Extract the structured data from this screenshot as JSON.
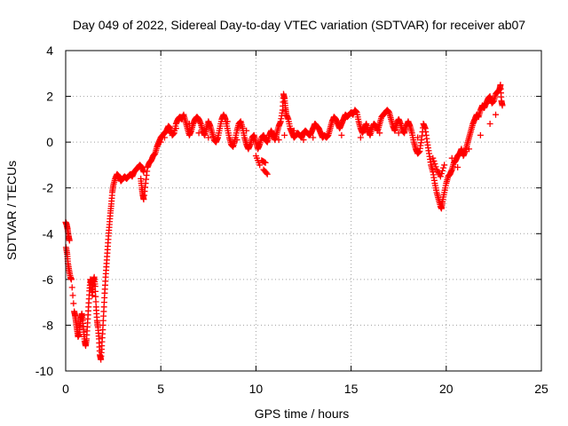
{
  "chart_data": {
    "type": "scatter",
    "title": "Day 049 of 2022, Sidereal Day-to-day VTEC variation (SDTVAR) for receiver ab07",
    "xlabel": "GPS time / hours",
    "ylabel": "SDTVAR / TECUs",
    "xlim": [
      0,
      25
    ],
    "ylim": [
      -10,
      4
    ],
    "xticks": [
      0,
      5,
      10,
      15,
      20,
      25
    ],
    "yticks": [
      -10,
      -8,
      -6,
      -4,
      -2,
      0,
      2,
      4
    ],
    "xtick_labels": [
      "0",
      "5",
      "10",
      "15",
      "20",
      "25"
    ],
    "ytick_labels": [
      "-10",
      "-8",
      "-6",
      "-4",
      "-2",
      "0",
      "2",
      "4"
    ],
    "grid": true,
    "marker": "+",
    "series": [
      {
        "name": "SDTVAR",
        "color": "#ff0000",
        "points": [
          [
            0.0,
            -3.5
          ],
          [
            0.05,
            -3.6
          ],
          [
            0.1,
            -3.8
          ],
          [
            0.15,
            -4.1
          ],
          [
            0.2,
            -4.3
          ],
          [
            0.02,
            -4.6
          ],
          [
            0.08,
            -4.9
          ],
          [
            0.12,
            -5.3
          ],
          [
            0.18,
            -5.6
          ],
          [
            0.25,
            -5.9
          ],
          [
            0.3,
            -6.0
          ],
          [
            0.45,
            -7.4
          ],
          [
            0.5,
            -7.6
          ],
          [
            0.55,
            -7.9
          ],
          [
            0.6,
            -8.2
          ],
          [
            0.65,
            -8.5
          ],
          [
            0.7,
            -8.4
          ],
          [
            0.75,
            -8.0
          ],
          [
            0.8,
            -7.7
          ],
          [
            0.85,
            -7.5
          ],
          [
            0.9,
            -7.8
          ],
          [
            0.95,
            -8.3
          ],
          [
            1.0,
            -8.7
          ],
          [
            1.05,
            -8.9
          ],
          [
            1.1,
            -8.6
          ],
          [
            1.15,
            -7.9
          ],
          [
            1.2,
            -7.2
          ],
          [
            1.25,
            -6.5
          ],
          [
            1.3,
            -6.0
          ],
          [
            1.35,
            -6.2
          ],
          [
            1.4,
            -6.7
          ],
          [
            1.45,
            -6.1
          ],
          [
            1.5,
            -5.9
          ],
          [
            1.55,
            -6.3
          ],
          [
            1.6,
            -7.2
          ],
          [
            1.65,
            -7.8
          ],
          [
            1.7,
            -8.1
          ],
          [
            1.75,
            -8.6
          ],
          [
            1.8,
            -9.3
          ],
          [
            1.85,
            -9.5
          ],
          [
            1.9,
            -8.9
          ],
          [
            1.95,
            -8.2
          ],
          [
            2.0,
            -7.4
          ],
          [
            2.05,
            -6.6
          ],
          [
            2.1,
            -5.9
          ],
          [
            2.15,
            -5.3
          ],
          [
            2.2,
            -4.7
          ],
          [
            2.25,
            -4.1
          ],
          [
            2.3,
            -3.6
          ],
          [
            2.35,
            -3.1
          ],
          [
            2.4,
            -2.7
          ],
          [
            2.45,
            -2.2
          ],
          [
            2.5,
            -1.9
          ],
          [
            2.6,
            -1.6
          ],
          [
            2.7,
            -1.4
          ],
          [
            2.8,
            -1.5
          ],
          [
            2.9,
            -1.7
          ],
          [
            3.0,
            -1.6
          ],
          [
            3.1,
            -1.5
          ],
          [
            3.2,
            -1.6
          ],
          [
            3.3,
            -1.5
          ],
          [
            3.4,
            -1.4
          ],
          [
            3.5,
            -1.5
          ],
          [
            3.6,
            -1.3
          ],
          [
            3.7,
            -1.2
          ],
          [
            3.8,
            -1.1
          ],
          [
            3.9,
            -1.0
          ],
          [
            4.0,
            -1.1
          ],
          [
            4.1,
            -1.3
          ],
          [
            3.95,
            -1.6
          ],
          [
            4.0,
            -2.0
          ],
          [
            4.05,
            -2.3
          ],
          [
            4.1,
            -2.5
          ],
          [
            4.2,
            -1.8
          ],
          [
            4.3,
            -1.1
          ],
          [
            4.4,
            -0.9
          ],
          [
            4.5,
            -0.8
          ],
          [
            4.6,
            -0.6
          ],
          [
            4.7,
            -0.5
          ],
          [
            4.8,
            -0.2
          ],
          [
            4.9,
            0.0
          ],
          [
            5.0,
            0.2
          ],
          [
            5.1,
            0.3
          ],
          [
            5.2,
            0.4
          ],
          [
            5.3,
            0.5
          ],
          [
            5.4,
            0.7
          ],
          [
            5.5,
            0.6
          ],
          [
            5.6,
            0.3
          ],
          [
            5.7,
            0.4
          ],
          [
            5.8,
            0.8
          ],
          [
            5.9,
            1.0
          ],
          [
            6.0,
            1.1
          ],
          [
            6.1,
            1.0
          ],
          [
            6.2,
            1.2
          ],
          [
            6.3,
            0.9
          ],
          [
            6.4,
            0.6
          ],
          [
            6.5,
            0.3
          ],
          [
            6.6,
            0.5
          ],
          [
            6.7,
            0.8
          ],
          [
            6.8,
            1.0
          ],
          [
            6.9,
            1.1
          ],
          [
            7.0,
            1.0
          ],
          [
            7.1,
            0.8
          ],
          [
            7.2,
            0.5
          ],
          [
            7.3,
            0.3
          ],
          [
            7.4,
            0.6
          ],
          [
            7.5,
            0.9
          ],
          [
            7.6,
            0.7
          ],
          [
            7.7,
            0.4
          ],
          [
            7.8,
            0.1
          ],
          [
            7.9,
            0.0
          ],
          [
            8.0,
            0.2
          ],
          [
            8.1,
            0.6
          ],
          [
            8.2,
            1.0
          ],
          [
            8.3,
            1.2
          ],
          [
            8.4,
            1.0
          ],
          [
            8.5,
            0.6
          ],
          [
            8.6,
            0.2
          ],
          [
            8.7,
            -0.1
          ],
          [
            8.8,
            -0.2
          ],
          [
            8.9,
            0.1
          ],
          [
            9.0,
            0.5
          ],
          [
            9.1,
            0.8
          ],
          [
            9.2,
            0.9
          ],
          [
            9.3,
            0.6
          ],
          [
            9.4,
            0.2
          ],
          [
            9.5,
            -0.1
          ],
          [
            9.6,
            -0.3
          ],
          [
            9.7,
            -0.1
          ],
          [
            9.8,
            0.2
          ],
          [
            9.9,
            0.3
          ],
          [
            10.0,
            0.0
          ],
          [
            10.1,
            -0.3
          ],
          [
            10.2,
            -0.1
          ],
          [
            10.3,
            0.2
          ],
          [
            10.4,
            0.3
          ],
          [
            10.5,
            0.1
          ],
          [
            10.6,
            0.0
          ],
          [
            10.7,
            0.3
          ],
          [
            10.8,
            0.5
          ],
          [
            10.9,
            0.3
          ],
          [
            11.0,
            0.1
          ],
          [
            11.1,
            0.4
          ],
          [
            11.2,
            0.7
          ],
          [
            11.3,
            0.9
          ],
          [
            11.4,
            1.4
          ],
          [
            11.45,
            2.1
          ],
          [
            11.5,
            1.9
          ],
          [
            11.55,
            1.5
          ],
          [
            11.6,
            1.2
          ],
          [
            11.7,
            1.0
          ],
          [
            11.8,
            0.6
          ],
          [
            11.9,
            0.4
          ],
          [
            12.0,
            0.2
          ],
          [
            12.1,
            0.3
          ],
          [
            12.2,
            0.4
          ],
          [
            12.3,
            0.3
          ],
          [
            12.4,
            0.2
          ],
          [
            12.5,
            0.4
          ],
          [
            12.6,
            0.5
          ],
          [
            12.7,
            0.4
          ],
          [
            12.8,
            0.3
          ],
          [
            12.9,
            0.4
          ],
          [
            13.0,
            0.6
          ],
          [
            13.1,
            0.8
          ],
          [
            13.2,
            0.7
          ],
          [
            13.3,
            0.6
          ],
          [
            13.4,
            0.4
          ],
          [
            13.5,
            0.2
          ],
          [
            13.6,
            0.3
          ],
          [
            13.7,
            0.2
          ],
          [
            13.8,
            0.3
          ],
          [
            13.9,
            0.6
          ],
          [
            14.0,
            0.9
          ],
          [
            14.1,
            1.1
          ],
          [
            14.2,
            1.0
          ],
          [
            14.3,
            0.8
          ],
          [
            14.4,
            0.6
          ],
          [
            14.5,
            0.8
          ],
          [
            14.6,
            1.0
          ],
          [
            14.7,
            1.2
          ],
          [
            14.8,
            1.1
          ],
          [
            14.9,
            1.2
          ],
          [
            15.0,
            1.3
          ],
          [
            15.1,
            1.2
          ],
          [
            15.2,
            1.4
          ],
          [
            15.3,
            1.3
          ],
          [
            15.4,
            0.9
          ],
          [
            15.5,
            0.6
          ],
          [
            15.6,
            0.4
          ],
          [
            15.7,
            0.6
          ],
          [
            15.8,
            0.8
          ],
          [
            15.9,
            0.5
          ],
          [
            16.0,
            0.3
          ],
          [
            16.1,
            0.6
          ],
          [
            16.2,
            0.8
          ],
          [
            16.3,
            0.7
          ],
          [
            16.4,
            0.5
          ],
          [
            16.5,
            0.8
          ],
          [
            16.6,
            1.1
          ],
          [
            16.7,
            1.2
          ],
          [
            16.8,
            1.3
          ],
          [
            16.9,
            1.4
          ],
          [
            17.0,
            1.3
          ],
          [
            17.1,
            1.0
          ],
          [
            17.2,
            0.7
          ],
          [
            17.3,
            0.5
          ],
          [
            17.4,
            0.8
          ],
          [
            17.5,
            1.0
          ],
          [
            17.6,
            0.8
          ],
          [
            17.7,
            0.5
          ],
          [
            17.8,
            0.4
          ],
          [
            17.9,
            0.7
          ],
          [
            18.0,
            0.9
          ],
          [
            18.1,
            0.7
          ],
          [
            18.2,
            0.4
          ],
          [
            18.3,
            0.0
          ],
          [
            18.4,
            -0.3
          ],
          [
            18.5,
            -0.5
          ],
          [
            18.6,
            -0.4
          ],
          [
            18.7,
            0.1
          ],
          [
            18.8,
            0.8
          ],
          [
            18.9,
            0.6
          ],
          [
            19.0,
            0.0
          ],
          [
            19.1,
            -0.5
          ],
          [
            19.2,
            -1.0
          ],
          [
            19.3,
            -1.3
          ],
          [
            19.4,
            -1.8
          ],
          [
            19.5,
            -2.2
          ],
          [
            19.6,
            -2.5
          ],
          [
            19.7,
            -2.8
          ],
          [
            19.75,
            -2.9
          ],
          [
            19.8,
            -2.6
          ],
          [
            19.9,
            -2.2
          ],
          [
            20.0,
            -1.8
          ],
          [
            20.1,
            -1.5
          ],
          [
            20.2,
            -1.4
          ],
          [
            20.3,
            -1.2
          ],
          [
            20.4,
            -0.9
          ],
          [
            20.5,
            -0.8
          ],
          [
            20.6,
            -0.6
          ],
          [
            20.7,
            -0.5
          ],
          [
            20.8,
            -0.3
          ],
          [
            20.9,
            -0.6
          ],
          [
            21.0,
            -0.4
          ],
          [
            21.1,
            -0.1
          ],
          [
            21.2,
            0.2
          ],
          [
            21.3,
            0.5
          ],
          [
            21.4,
            0.8
          ],
          [
            21.5,
            1.0
          ],
          [
            21.6,
            1.2
          ],
          [
            21.7,
            1.1
          ],
          [
            21.8,
            1.4
          ],
          [
            21.9,
            1.6
          ],
          [
            22.0,
            1.5
          ],
          [
            22.1,
            1.7
          ],
          [
            22.2,
            1.9
          ],
          [
            22.3,
            2.0
          ],
          [
            22.4,
            1.7
          ],
          [
            22.5,
            1.8
          ],
          [
            22.6,
            2.1
          ],
          [
            22.7,
            2.2
          ],
          [
            22.8,
            2.3
          ],
          [
            22.85,
            2.5
          ],
          [
            22.9,
            1.8
          ],
          [
            22.95,
            1.6
          ],
          [
            5.0,
            0.0
          ],
          [
            5.2,
            0.2
          ],
          [
            5.5,
            0.4
          ],
          [
            5.8,
            0.6
          ],
          [
            6.5,
            0.8
          ],
          [
            7.0,
            0.4
          ],
          [
            7.5,
            0.2
          ],
          [
            8.5,
            0.9
          ],
          [
            9.0,
            0.1
          ],
          [
            9.5,
            0.5
          ],
          [
            10.0,
            -0.6
          ],
          [
            10.2,
            -1.0
          ],
          [
            10.4,
            -1.2
          ],
          [
            10.6,
            -1.4
          ],
          [
            10.3,
            -0.8
          ],
          [
            10.5,
            -0.9
          ],
          [
            11.2,
            0.1
          ],
          [
            11.5,
            0.3
          ],
          [
            12.0,
            0.5
          ],
          [
            12.5,
            0.1
          ],
          [
            13.0,
            0.2
          ],
          [
            14.5,
            0.3
          ],
          [
            15.5,
            0.2
          ],
          [
            16.5,
            0.4
          ],
          [
            17.5,
            0.4
          ],
          [
            18.5,
            0.2
          ],
          [
            19.3,
            -0.7
          ],
          [
            19.5,
            -1.2
          ],
          [
            19.7,
            -1.5
          ],
          [
            19.9,
            -1.0
          ],
          [
            20.3,
            -0.7
          ],
          [
            20.6,
            -1.1
          ],
          [
            21.2,
            -0.3
          ],
          [
            21.8,
            0.3
          ],
          [
            22.3,
            0.8
          ],
          [
            22.6,
            1.2
          ]
        ]
      }
    ]
  }
}
